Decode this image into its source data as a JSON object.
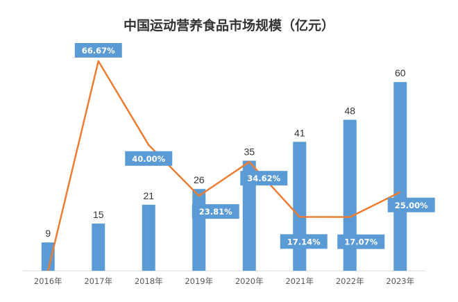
{
  "chart_data": {
    "type": "bar",
    "title": "中国运动营养食品市场规模（亿元）",
    "categories": [
      "2016年",
      "2017年",
      "2018年",
      "2019年",
      "2020年",
      "2021年",
      "2022年",
      "2023年"
    ],
    "series": [
      {
        "type": "bar",
        "values": [
          9,
          15,
          21,
          26,
          35,
          41,
          48,
          60
        ],
        "color": "#5b9bd5"
      },
      {
        "type": "line",
        "values": [
          0,
          66.67,
          40.0,
          23.81,
          34.62,
          17.14,
          17.07,
          25.0
        ],
        "labels": [
          "",
          "66.67%",
          "40.00%",
          "23.81%",
          "34.62%",
          "17.14%",
          "17.07%",
          "25.00%"
        ],
        "color": "#ed7d31"
      }
    ],
    "ylim": [
      0,
      60
    ],
    "grid": false,
    "legend": "none"
  }
}
